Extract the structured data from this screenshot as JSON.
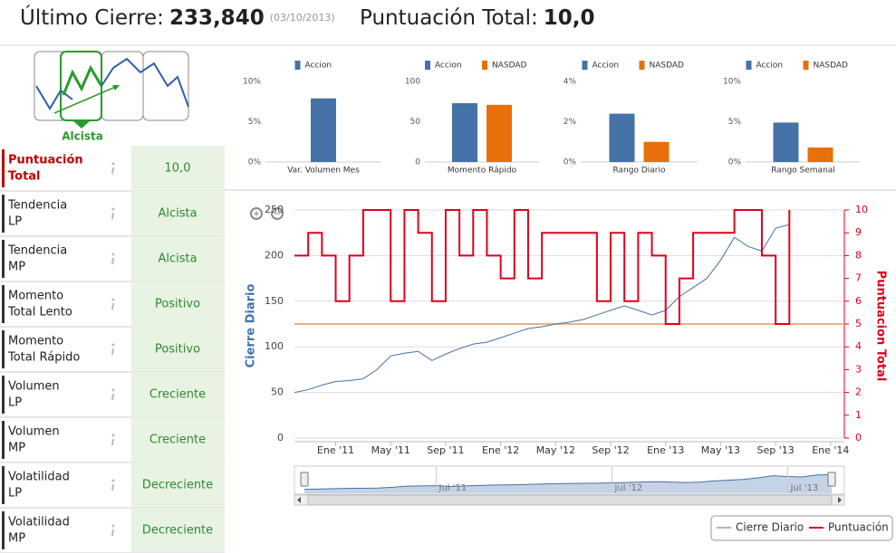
{
  "header": {
    "close_label": "Último Cierre:",
    "close": "233,840",
    "date": "(03/10/2013)",
    "score_label": "Puntuación Total:",
    "score": "10,0"
  },
  "trend_icon": {
    "label": "Alcista"
  },
  "table": {
    "rows": [
      {
        "label": [
          "Puntuación",
          "Total"
        ],
        "value": "10,0"
      },
      {
        "label": [
          "Tendencia",
          "LP"
        ],
        "value": "Alcista"
      },
      {
        "label": [
          "Tendencia",
          "MP"
        ],
        "value": "Alcista"
      },
      {
        "label": [
          "Momento",
          "Total Lento"
        ],
        "value": "Positivo"
      },
      {
        "label": [
          "Momento",
          "Total Rápido"
        ],
        "value": "Positivo"
      },
      {
        "label": [
          "Volumen",
          "LP"
        ],
        "value": "Creciente"
      },
      {
        "label": [
          "Volumen",
          "MP"
        ],
        "value": "Creciente"
      },
      {
        "label": [
          "Volatilidad",
          "LP"
        ],
        "value": "Decreciente"
      },
      {
        "label": [
          "Volatilidad",
          "MP"
        ],
        "value": "Decreciente"
      }
    ]
  },
  "chart_data": [
    {
      "type": "bar",
      "categories": [
        "Var. Volumen Mes"
      ],
      "series": [
        {
          "name": "Accion",
          "color": "#4572a7",
          "values": [
            7.9
          ]
        }
      ],
      "ylim": [
        0,
        10
      ],
      "yticks": [
        {
          "value": 0,
          "label": "0%"
        },
        {
          "value": 5,
          "label": "5%"
        },
        {
          "value": 10,
          "label": "10%"
        }
      ],
      "grid": false
    },
    {
      "type": "bar",
      "categories": [
        "Momento Rápido"
      ],
      "series": [
        {
          "name": "Accion",
          "color": "#4572a7",
          "values": [
            73
          ]
        },
        {
          "name": "NASDAD",
          "color": "#e8700a",
          "values": [
            71
          ]
        }
      ],
      "ylim": [
        0,
        100
      ],
      "yticks": [
        0,
        50,
        100
      ],
      "grid": false
    },
    {
      "type": "bar",
      "categories": [
        "Rango Diario"
      ],
      "series": [
        {
          "name": "Accion",
          "color": "#4572a7",
          "values": [
            2.4
          ]
        },
        {
          "name": "NASDAD",
          "color": "#e8700a",
          "values": [
            1.0
          ]
        }
      ],
      "ylim": [
        0,
        4
      ],
      "yticks": [
        {
          "value": 0,
          "label": "0%"
        },
        {
          "value": 2,
          "label": "2%"
        },
        {
          "value": 4,
          "label": "4%"
        }
      ],
      "grid": false
    },
    {
      "type": "bar",
      "categories": [
        "Rango Semanal"
      ],
      "series": [
        {
          "name": "Accion",
          "color": "#4572a7",
          "values": [
            4.9
          ]
        },
        {
          "name": "NASDAD",
          "color": "#e8700a",
          "values": [
            1.8
          ]
        }
      ],
      "ylim": [
        0,
        10
      ],
      "yticks": [
        {
          "value": 0,
          "label": "0%"
        },
        {
          "value": 5,
          "label": "5%"
        },
        {
          "value": 10,
          "label": "10%"
        }
      ],
      "grid": false
    },
    {
      "type": "line",
      "y_label": "Cierre Diario",
      "y2_label": "Puntuacion Total",
      "x": [
        "2010-10",
        "2010-11",
        "2010-12",
        "2011-01",
        "2011-02",
        "2011-03",
        "2011-04",
        "2011-05",
        "2011-06",
        "2011-07",
        "2011-08",
        "2011-09",
        "2011-10",
        "2011-11",
        "2011-12",
        "2012-01",
        "2012-02",
        "2012-03",
        "2012-04",
        "2012-05",
        "2012-06",
        "2012-07",
        "2012-08",
        "2012-09",
        "2012-10",
        "2012-11",
        "2012-12",
        "2013-01",
        "2013-02",
        "2013-03",
        "2013-04",
        "2013-05",
        "2013-06",
        "2013-07",
        "2013-08",
        "2013-09",
        "2013-10"
      ],
      "series": [
        {
          "name": "Cierre Diario",
          "color": "#4572a7",
          "values": [
            50,
            53,
            58,
            62,
            63,
            65,
            75,
            90,
            93,
            95,
            85,
            92,
            98,
            103,
            105,
            110,
            115,
            120,
            122,
            125,
            127,
            130,
            135,
            140,
            145,
            140,
            135,
            140,
            155,
            165,
            175,
            195,
            220,
            210,
            205,
            230,
            234
          ]
        },
        {
          "name": "Puntuación",
          "color": "#e0001b",
          "axis": "y2",
          "step": true,
          "values": [
            8,
            9,
            8,
            6,
            8,
            10,
            10,
            6,
            10,
            9,
            6,
            10,
            8,
            10,
            8,
            7,
            10,
            7,
            9,
            9,
            9,
            9,
            6,
            9,
            6,
            9,
            8,
            5,
            7,
            9,
            9,
            9,
            10,
            10,
            8,
            5,
            10
          ]
        }
      ],
      "xlim": [
        "2010-10",
        "2014-02"
      ],
      "xticks": [
        {
          "value": "2011-01",
          "label": "Ene '11"
        },
        {
          "value": "2011-05",
          "label": "May '11"
        },
        {
          "value": "2011-09",
          "label": "Sep '11"
        },
        {
          "value": "2012-01",
          "label": "Ene '12"
        },
        {
          "value": "2012-05",
          "label": "May '12"
        },
        {
          "value": "2012-09",
          "label": "Sep '12"
        },
        {
          "value": "2013-01",
          "label": "Ene '13"
        },
        {
          "value": "2013-05",
          "label": "May '13"
        },
        {
          "value": "2013-09",
          "label": "Sep '13"
        },
        {
          "value": "2014-01",
          "label": "Ene '14"
        }
      ],
      "ylim": [
        0,
        250
      ],
      "yticks": [
        0,
        50,
        100,
        150,
        200,
        250
      ],
      "y2lim": [
        0,
        10
      ],
      "y2ticks": [
        0,
        1,
        2,
        3,
        4,
        5,
        6,
        7,
        8,
        9,
        10
      ],
      "plot_lines": [
        {
          "value": 125,
          "color": "#f0b080"
        }
      ],
      "grid": true,
      "legend": "bottom-right",
      "navigator": {
        "xlim": [
          "2010-10",
          "2013-10"
        ],
        "xticks": [
          {
            "value": "2011-07",
            "label": "Jul '11"
          },
          {
            "value": "2012-07",
            "label": "Jul '12"
          },
          {
            "value": "2013-07",
            "label": "Jul '13"
          }
        ]
      }
    }
  ]
}
